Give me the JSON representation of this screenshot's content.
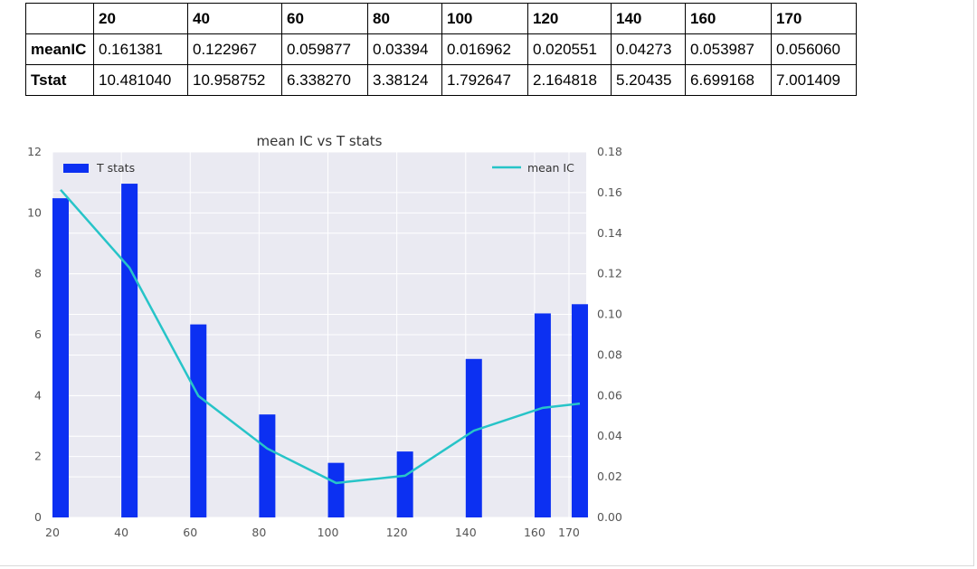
{
  "table": {
    "columns": [
      "",
      "20",
      "40",
      "60",
      "80",
      "100",
      "120",
      "140",
      "160",
      "170"
    ],
    "rows": [
      {
        "label": "meanIC",
        "values": [
          "0.161381",
          "0.122967",
          "0.059877",
          "0.03394",
          "0.016962",
          "0.020551",
          "0.04273",
          "0.053987",
          "0.056060"
        ]
      },
      {
        "label": "Tstat",
        "values": [
          "10.481040",
          "10.958752",
          "6.338270",
          "3.38124",
          "1.792647",
          "2.164818",
          "5.20435",
          "6.699168",
          "7.001409"
        ]
      }
    ]
  },
  "chart_data": {
    "type": "bar+line",
    "title": "mean IC vs T stats",
    "x": [
      20,
      40,
      60,
      80,
      100,
      120,
      140,
      160,
      170
    ],
    "x_ticks": [
      "20",
      "40",
      "60",
      "80",
      "100",
      "120",
      "140",
      "160",
      "170"
    ],
    "xlim": [
      20,
      175
    ],
    "series": [
      {
        "name": "T stats",
        "kind": "bar",
        "axis": "left",
        "color": "#0c30f2",
        "values": [
          10.48104,
          10.958752,
          6.33827,
          3.38124,
          1.792647,
          2.164818,
          5.20435,
          6.699168,
          7.001409
        ]
      },
      {
        "name": "mean IC",
        "kind": "line",
        "axis": "right",
        "color": "#27c4c8",
        "values": [
          0.161381,
          0.122967,
          0.059877,
          0.03394,
          0.016962,
          0.020551,
          0.04273,
          0.053987,
          0.05606
        ]
      }
    ],
    "y_left": {
      "lim": [
        0,
        12
      ],
      "ticks": [
        "0",
        "2",
        "4",
        "6",
        "8",
        "10",
        "12"
      ]
    },
    "y_right": {
      "lim": [
        0,
        0.18
      ],
      "ticks": [
        "0.00",
        "0.02",
        "0.04",
        "0.06",
        "0.08",
        "0.10",
        "0.12",
        "0.14",
        "0.16",
        "0.18"
      ]
    },
    "grid": true,
    "legend_left": "top-left",
    "legend_right": "top-right"
  }
}
